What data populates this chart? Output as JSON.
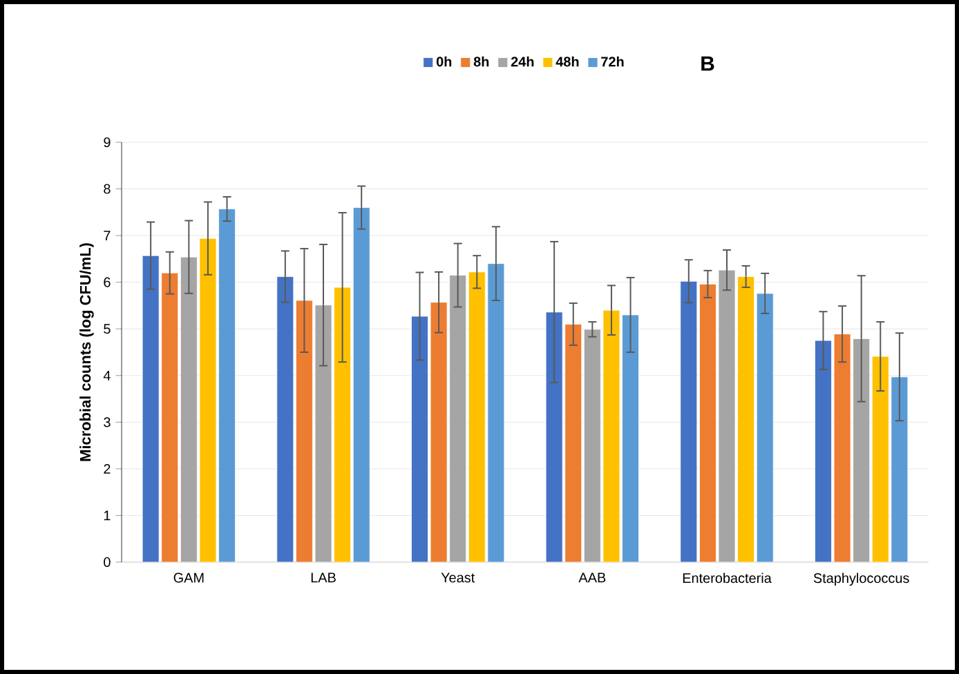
{
  "chart_data": {
    "type": "bar",
    "title": "B",
    "ylabel": "Microbial counts (log CFU/mL)",
    "categories": [
      "GAM",
      "LAB",
      "Yeast",
      "AAB",
      "Enterobacteria",
      "Staphylococcus"
    ],
    "series": [
      {
        "name": "0h",
        "color": "#4472c4",
        "values": [
          6.57,
          6.12,
          5.27,
          5.36,
          6.02,
          4.75
        ],
        "errors": [
          0.72,
          0.55,
          0.94,
          1.51,
          0.46,
          0.62
        ]
      },
      {
        "name": "8h",
        "color": "#ed7d31",
        "values": [
          6.2,
          5.61,
          5.57,
          5.1,
          5.96,
          4.89
        ],
        "errors": [
          0.45,
          1.11,
          0.65,
          0.45,
          0.29,
          0.6
        ]
      },
      {
        "name": "24h",
        "color": "#a5a5a5",
        "values": [
          6.54,
          5.51,
          6.15,
          4.99,
          6.26,
          4.79
        ],
        "errors": [
          0.78,
          1.3,
          0.68,
          0.16,
          0.43,
          1.35
        ]
      },
      {
        "name": "48h",
        "color": "#ffc000",
        "values": [
          6.94,
          5.89,
          6.22,
          5.4,
          6.12,
          4.41
        ],
        "errors": [
          0.78,
          1.6,
          0.35,
          0.53,
          0.23,
          0.74
        ]
      },
      {
        "name": "72h",
        "color": "#5b9bd5",
        "values": [
          7.57,
          7.6,
          6.4,
          5.3,
          5.76,
          3.97
        ],
        "errors": [
          0.26,
          0.46,
          0.79,
          0.8,
          0.43,
          0.94
        ]
      }
    ],
    "ylim": [
      0,
      9
    ],
    "yticks": [
      0,
      1,
      2,
      3,
      4,
      5,
      6,
      7,
      8,
      9
    ],
    "grid": "y",
    "legend": "top"
  }
}
